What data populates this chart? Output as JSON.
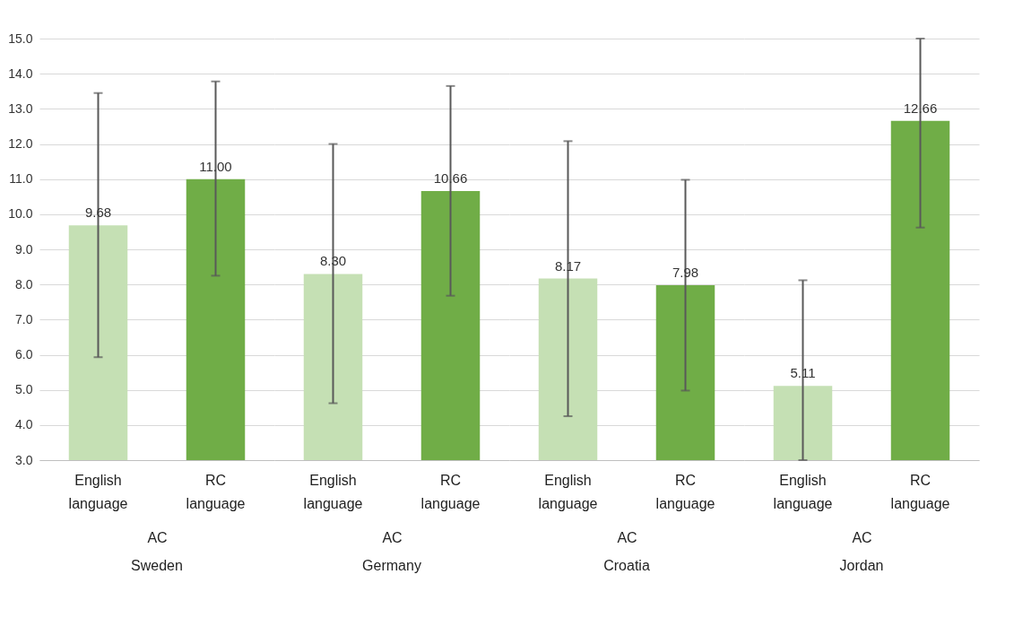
{
  "chart_data": [
    {
      "type": "bar",
      "title": "Sweden",
      "xlabel": "AC",
      "categories": [
        "English language",
        "RC language"
      ],
      "values": [
        9.68,
        11.0
      ],
      "value_labels": [
        "9.68",
        "11.00"
      ],
      "errors": [
        [
          5.93,
          13.45
        ],
        [
          8.25,
          13.78
        ]
      ],
      "colors": [
        "#c5e0b4",
        "#70ad47"
      ],
      "ylim": [
        3,
        15
      ],
      "yticks": [
        {
          "value": 3,
          "label": "3.0"
        },
        {
          "value": 4,
          "label": "4.0"
        },
        {
          "value": 5,
          "label": "5.0"
        },
        {
          "value": 6,
          "label": "6.0"
        },
        {
          "value": 7,
          "label": "7.0"
        },
        {
          "value": 8,
          "label": "8.0"
        },
        {
          "value": 9,
          "label": "9.0"
        },
        {
          "value": 10,
          "label": "10.0"
        },
        {
          "value": 11,
          "label": "11.0"
        },
        {
          "value": 12,
          "label": "12.0"
        },
        {
          "value": 13,
          "label": "13.0"
        },
        {
          "value": 14,
          "label": "14.0"
        },
        {
          "value": 15,
          "label": "15.0"
        }
      ],
      "grid": "y"
    },
    {
      "type": "bar",
      "title": "Germany",
      "xlabel": "AC",
      "categories": [
        "English language",
        "RC language"
      ],
      "values": [
        8.3,
        10.66
      ],
      "value_labels": [
        "8.30",
        "10.66"
      ],
      "errors": [
        [
          4.62,
          12.0
        ],
        [
          7.68,
          13.65
        ]
      ],
      "colors": [
        "#c5e0b4",
        "#70ad47"
      ],
      "ylim": [
        3,
        15
      ],
      "tick_labels": "x",
      "grid": "y"
    },
    {
      "type": "bar",
      "title": "Croatia",
      "xlabel": "AC",
      "categories": [
        "English language",
        "RC language"
      ],
      "values": [
        8.17,
        7.98
      ],
      "value_labels": [
        "8.17",
        "7.98"
      ],
      "errors": [
        [
          4.25,
          12.08
        ],
        [
          4.98,
          10.98
        ]
      ],
      "colors": [
        "#c5e0b4",
        "#70ad47"
      ],
      "ylim": [
        3,
        15
      ],
      "tick_labels": "x",
      "grid": "y"
    },
    {
      "type": "bar",
      "title": "Jordan",
      "xlabel": "AC",
      "categories": [
        "English language",
        "RC language"
      ],
      "values": [
        5.11,
        12.66
      ],
      "value_labels": [
        "5.11",
        "12.66"
      ],
      "errors": [
        [
          3.0,
          8.12
        ],
        [
          9.62,
          15.0
        ]
      ],
      "colors": [
        "#c5e0b4",
        "#70ad47"
      ],
      "ylim": [
        3,
        15
      ],
      "tick_labels": "x",
      "grid": "y"
    }
  ]
}
